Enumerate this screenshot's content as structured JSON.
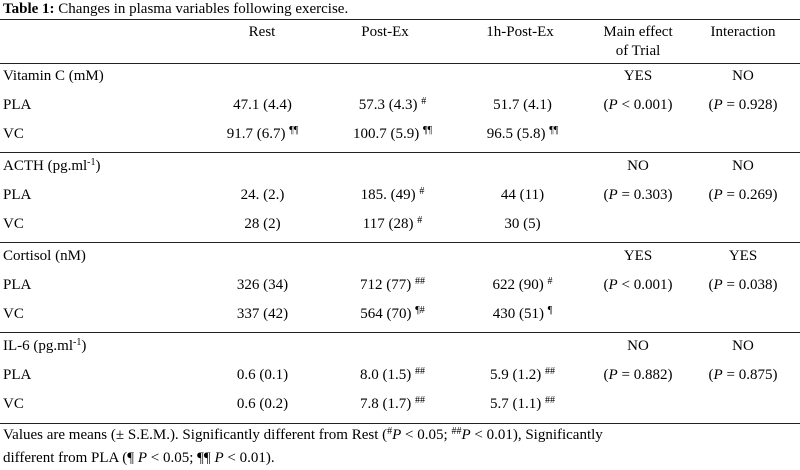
{
  "table": {
    "label": "Table 1:",
    "caption": "Changes in plasma variables following exercise.",
    "headers": {
      "rest": "Rest",
      "post_ex": "Post-Ex",
      "post_1h": "1h-Post-Ex",
      "main_effect_line1": "Main effect",
      "main_effect_line2": "of Trial",
      "interaction": "Interaction"
    },
    "sections": [
      {
        "variable": "Vitamin C (mM)",
        "main_effect": "YES",
        "interaction": "NO",
        "rows": [
          {
            "group": "PLA",
            "rest": "47.1 (4.4)",
            "rest_mark": "",
            "post_ex": "57.3 (4.3)",
            "post_ex_mark": "#",
            "post_1h": "51.7 (4.1)",
            "post_1h_mark": "",
            "p_main": "0.001",
            "p_main_op": "<",
            "p_int": "0.928",
            "p_int_op": "="
          },
          {
            "group": "VC",
            "rest": "91.7 (6.7)",
            "rest_mark": "¶¶",
            "post_ex": "100.7 (5.9)",
            "post_ex_mark": "¶¶",
            "post_1h": "96.5 (5.8)",
            "post_1h_mark": "¶¶"
          }
        ]
      },
      {
        "variable": "ACTH (pg.ml",
        "variable_sup": "-1",
        "variable_end": ")",
        "main_effect": "NO",
        "interaction": "NO",
        "rows": [
          {
            "group": "PLA",
            "rest": "24. (2.)",
            "rest_mark": "",
            "post_ex": "185. (49)",
            "post_ex_mark": "#",
            "post_1h": "44 (11)",
            "post_1h_mark": "",
            "p_main": "0.303",
            "p_main_op": "=",
            "p_int": "0.269",
            "p_int_op": "="
          },
          {
            "group": "VC",
            "rest": "28 (2)",
            "rest_mark": "",
            "post_ex": "117 (28)",
            "post_ex_mark": "#",
            "post_1h": "30 (5)",
            "post_1h_mark": ""
          }
        ]
      },
      {
        "variable": "Cortisol (nM)",
        "main_effect": "YES",
        "interaction": "YES",
        "rows": [
          {
            "group": "PLA",
            "rest": "326 (34)",
            "rest_mark": "",
            "post_ex": "712 (77)",
            "post_ex_mark": "##",
            "post_1h": "622 (90)",
            "post_1h_mark": "#",
            "p_main": "0.001",
            "p_main_op": "<",
            "p_int": "0.038",
            "p_int_op": "="
          },
          {
            "group": "VC",
            "rest": "337 (42)",
            "rest_mark": "",
            "post_ex": "564 (70)",
            "post_ex_mark": "¶#",
            "post_1h": "430 (51)",
            "post_1h_mark": "¶"
          }
        ]
      },
      {
        "variable": "IL-6 (pg.ml",
        "variable_sup": "-1",
        "variable_end": ")",
        "main_effect": "NO",
        "interaction": "NO",
        "rows": [
          {
            "group": "PLA",
            "rest": "0.6 (0.1)",
            "rest_mark": "",
            "post_ex": "8.0 (1.5)",
            "post_ex_mark": "##",
            "post_1h": "5.9 (1.2)",
            "post_1h_mark": "##",
            "p_main": "0.882",
            "p_main_op": "=",
            "p_int": "0.875",
            "p_int_op": "="
          },
          {
            "group": "VC",
            "rest": "0.6 (0.2)",
            "rest_mark": "",
            "post_ex": "7.8 (1.7)",
            "post_ex_mark": "##",
            "post_1h": "5.7 (1.1)",
            "post_1h_mark": "##"
          }
        ]
      }
    ],
    "p_letter": "P",
    "footnote": {
      "line1_a": "Values are means (± S.E.M.). Significantly different from Rest (",
      "mark1": "#",
      "p1": "P",
      "cond1": " < 0.05; ",
      "mark2": "##",
      "p2": "P",
      "cond2": " < 0.01), Significantly",
      "line2_a": "different from PLA (¶ ",
      "p3": "P",
      "cond3": " < 0.05; ¶¶ ",
      "p4": "P",
      "cond4": " < 0.01)."
    }
  }
}
